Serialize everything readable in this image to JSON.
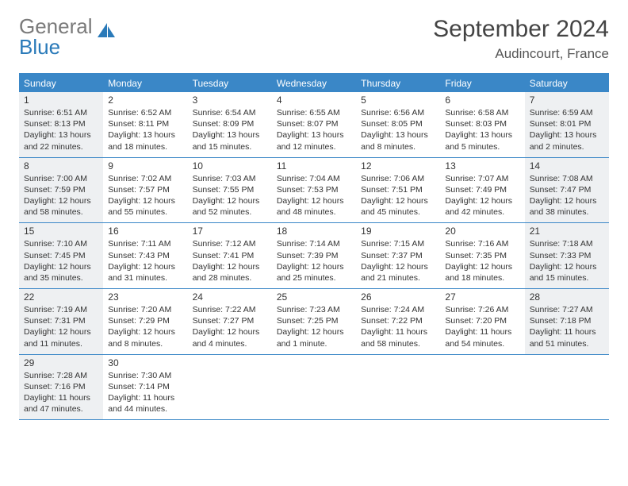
{
  "logo": {
    "text_gray": "General",
    "text_blue": "Blue"
  },
  "title": "September 2024",
  "location": "Audincourt, France",
  "colors": {
    "accent": "#3a87c7",
    "shaded_bg": "#eef0f2",
    "text": "#333333",
    "logo_gray": "#7a7a7a"
  },
  "day_names": [
    "Sunday",
    "Monday",
    "Tuesday",
    "Wednesday",
    "Thursday",
    "Friday",
    "Saturday"
  ],
  "weeks": [
    [
      {
        "n": "1",
        "shaded": true,
        "sr": "Sunrise: 6:51 AM",
        "ss": "Sunset: 8:13 PM",
        "d1": "Daylight: 13 hours",
        "d2": "and 22 minutes."
      },
      {
        "n": "2",
        "shaded": false,
        "sr": "Sunrise: 6:52 AM",
        "ss": "Sunset: 8:11 PM",
        "d1": "Daylight: 13 hours",
        "d2": "and 18 minutes."
      },
      {
        "n": "3",
        "shaded": false,
        "sr": "Sunrise: 6:54 AM",
        "ss": "Sunset: 8:09 PM",
        "d1": "Daylight: 13 hours",
        "d2": "and 15 minutes."
      },
      {
        "n": "4",
        "shaded": false,
        "sr": "Sunrise: 6:55 AM",
        "ss": "Sunset: 8:07 PM",
        "d1": "Daylight: 13 hours",
        "d2": "and 12 minutes."
      },
      {
        "n": "5",
        "shaded": false,
        "sr": "Sunrise: 6:56 AM",
        "ss": "Sunset: 8:05 PM",
        "d1": "Daylight: 13 hours",
        "d2": "and 8 minutes."
      },
      {
        "n": "6",
        "shaded": false,
        "sr": "Sunrise: 6:58 AM",
        "ss": "Sunset: 8:03 PM",
        "d1": "Daylight: 13 hours",
        "d2": "and 5 minutes."
      },
      {
        "n": "7",
        "shaded": true,
        "sr": "Sunrise: 6:59 AM",
        "ss": "Sunset: 8:01 PM",
        "d1": "Daylight: 13 hours",
        "d2": "and 2 minutes."
      }
    ],
    [
      {
        "n": "8",
        "shaded": true,
        "sr": "Sunrise: 7:00 AM",
        "ss": "Sunset: 7:59 PM",
        "d1": "Daylight: 12 hours",
        "d2": "and 58 minutes."
      },
      {
        "n": "9",
        "shaded": false,
        "sr": "Sunrise: 7:02 AM",
        "ss": "Sunset: 7:57 PM",
        "d1": "Daylight: 12 hours",
        "d2": "and 55 minutes."
      },
      {
        "n": "10",
        "shaded": false,
        "sr": "Sunrise: 7:03 AM",
        "ss": "Sunset: 7:55 PM",
        "d1": "Daylight: 12 hours",
        "d2": "and 52 minutes."
      },
      {
        "n": "11",
        "shaded": false,
        "sr": "Sunrise: 7:04 AM",
        "ss": "Sunset: 7:53 PM",
        "d1": "Daylight: 12 hours",
        "d2": "and 48 minutes."
      },
      {
        "n": "12",
        "shaded": false,
        "sr": "Sunrise: 7:06 AM",
        "ss": "Sunset: 7:51 PM",
        "d1": "Daylight: 12 hours",
        "d2": "and 45 minutes."
      },
      {
        "n": "13",
        "shaded": false,
        "sr": "Sunrise: 7:07 AM",
        "ss": "Sunset: 7:49 PM",
        "d1": "Daylight: 12 hours",
        "d2": "and 42 minutes."
      },
      {
        "n": "14",
        "shaded": true,
        "sr": "Sunrise: 7:08 AM",
        "ss": "Sunset: 7:47 PM",
        "d1": "Daylight: 12 hours",
        "d2": "and 38 minutes."
      }
    ],
    [
      {
        "n": "15",
        "shaded": true,
        "sr": "Sunrise: 7:10 AM",
        "ss": "Sunset: 7:45 PM",
        "d1": "Daylight: 12 hours",
        "d2": "and 35 minutes."
      },
      {
        "n": "16",
        "shaded": false,
        "sr": "Sunrise: 7:11 AM",
        "ss": "Sunset: 7:43 PM",
        "d1": "Daylight: 12 hours",
        "d2": "and 31 minutes."
      },
      {
        "n": "17",
        "shaded": false,
        "sr": "Sunrise: 7:12 AM",
        "ss": "Sunset: 7:41 PM",
        "d1": "Daylight: 12 hours",
        "d2": "and 28 minutes."
      },
      {
        "n": "18",
        "shaded": false,
        "sr": "Sunrise: 7:14 AM",
        "ss": "Sunset: 7:39 PM",
        "d1": "Daylight: 12 hours",
        "d2": "and 25 minutes."
      },
      {
        "n": "19",
        "shaded": false,
        "sr": "Sunrise: 7:15 AM",
        "ss": "Sunset: 7:37 PM",
        "d1": "Daylight: 12 hours",
        "d2": "and 21 minutes."
      },
      {
        "n": "20",
        "shaded": false,
        "sr": "Sunrise: 7:16 AM",
        "ss": "Sunset: 7:35 PM",
        "d1": "Daylight: 12 hours",
        "d2": "and 18 minutes."
      },
      {
        "n": "21",
        "shaded": true,
        "sr": "Sunrise: 7:18 AM",
        "ss": "Sunset: 7:33 PM",
        "d1": "Daylight: 12 hours",
        "d2": "and 15 minutes."
      }
    ],
    [
      {
        "n": "22",
        "shaded": true,
        "sr": "Sunrise: 7:19 AM",
        "ss": "Sunset: 7:31 PM",
        "d1": "Daylight: 12 hours",
        "d2": "and 11 minutes."
      },
      {
        "n": "23",
        "shaded": false,
        "sr": "Sunrise: 7:20 AM",
        "ss": "Sunset: 7:29 PM",
        "d1": "Daylight: 12 hours",
        "d2": "and 8 minutes."
      },
      {
        "n": "24",
        "shaded": false,
        "sr": "Sunrise: 7:22 AM",
        "ss": "Sunset: 7:27 PM",
        "d1": "Daylight: 12 hours",
        "d2": "and 4 minutes."
      },
      {
        "n": "25",
        "shaded": false,
        "sr": "Sunrise: 7:23 AM",
        "ss": "Sunset: 7:25 PM",
        "d1": "Daylight: 12 hours",
        "d2": "and 1 minute."
      },
      {
        "n": "26",
        "shaded": false,
        "sr": "Sunrise: 7:24 AM",
        "ss": "Sunset: 7:22 PM",
        "d1": "Daylight: 11 hours",
        "d2": "and 58 minutes."
      },
      {
        "n": "27",
        "shaded": false,
        "sr": "Sunrise: 7:26 AM",
        "ss": "Sunset: 7:20 PM",
        "d1": "Daylight: 11 hours",
        "d2": "and 54 minutes."
      },
      {
        "n": "28",
        "shaded": true,
        "sr": "Sunrise: 7:27 AM",
        "ss": "Sunset: 7:18 PM",
        "d1": "Daylight: 11 hours",
        "d2": "and 51 minutes."
      }
    ],
    [
      {
        "n": "29",
        "shaded": true,
        "sr": "Sunrise: 7:28 AM",
        "ss": "Sunset: 7:16 PM",
        "d1": "Daylight: 11 hours",
        "d2": "and 47 minutes."
      },
      {
        "n": "30",
        "shaded": false,
        "sr": "Sunrise: 7:30 AM",
        "ss": "Sunset: 7:14 PM",
        "d1": "Daylight: 11 hours",
        "d2": "and 44 minutes."
      },
      {
        "empty": true
      },
      {
        "empty": true
      },
      {
        "empty": true
      },
      {
        "empty": true
      },
      {
        "empty": true
      }
    ]
  ]
}
